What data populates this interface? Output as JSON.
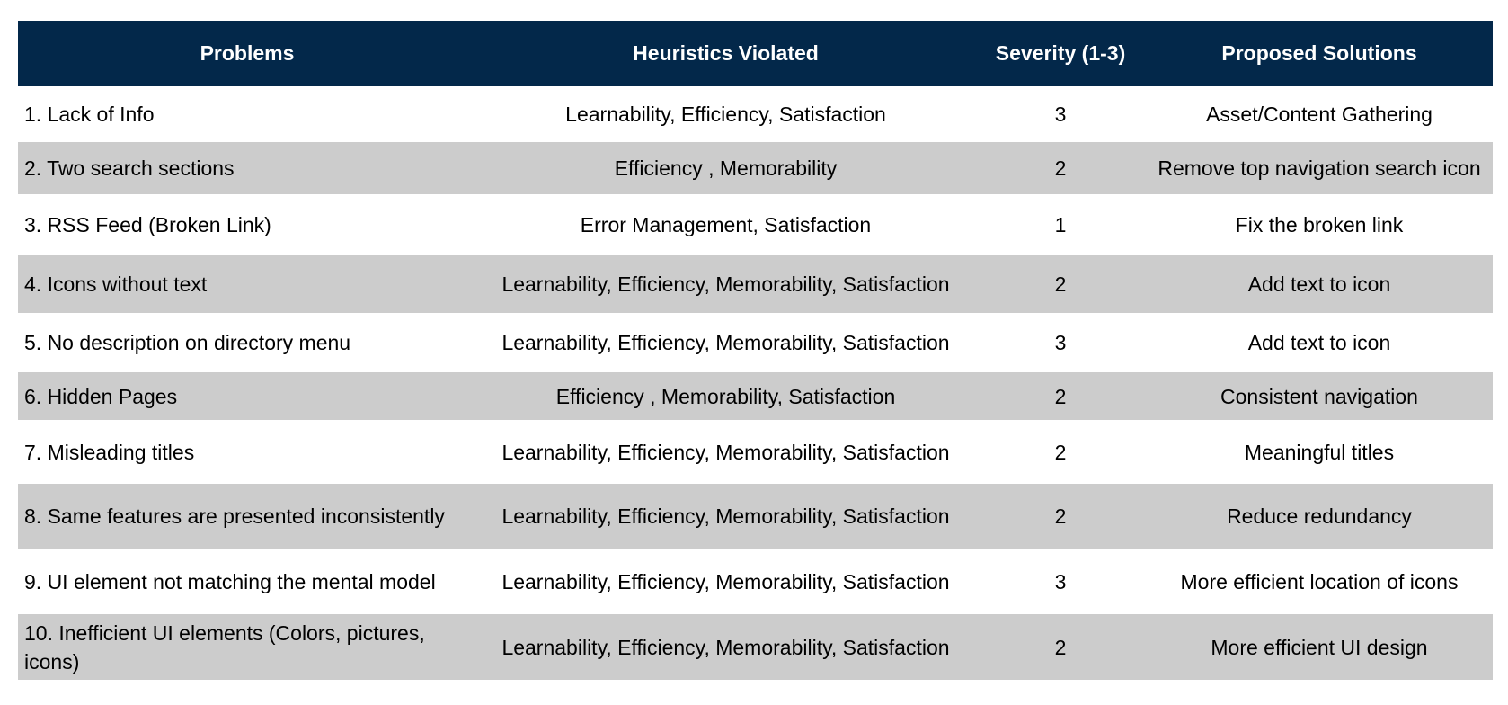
{
  "colors": {
    "header_bg": "#03284a",
    "header_text": "#ffffff",
    "alt_row_bg": "#cccccc",
    "row_bg": "#ffffff"
  },
  "table": {
    "headers": [
      "Problems",
      "Heuristics Violated",
      "Severity (1-3)",
      "Proposed Solutions"
    ],
    "rows": [
      {
        "problem": "1. Lack of Info",
        "heuristics": "Learnability, Efficiency, Satisfaction",
        "severity": "3",
        "solution": "Asset/Content Gathering"
      },
      {
        "problem": "2. Two search sections",
        "heuristics": "Efficiency , Memorability",
        "severity": "2",
        "solution": "Remove top navigation search icon"
      },
      {
        "problem": "3. RSS Feed (Broken Link)",
        "heuristics": "Error Management, Satisfaction",
        "severity": "1",
        "solution": "Fix the broken link"
      },
      {
        "problem": "4. Icons without text",
        "heuristics": "Learnability, Efficiency, Memorability, Satisfaction",
        "severity": "2",
        "solution": "Add text to icon"
      },
      {
        "problem": "5. No description on directory menu",
        "heuristics": "Learnability, Efficiency, Memorability, Satisfaction",
        "severity": "3",
        "solution": "Add text to icon"
      },
      {
        "problem": "6. Hidden Pages",
        "heuristics": "Efficiency , Memorability, Satisfaction",
        "severity": "2",
        "solution": "Consistent navigation"
      },
      {
        "problem": "7. Misleading titles",
        "heuristics": "Learnability, Efficiency, Memorability, Satisfaction",
        "severity": "2",
        "solution": "Meaningful titles"
      },
      {
        "problem": "8. Same features are presented inconsistently",
        "heuristics": "Learnability, Efficiency, Memorability, Satisfaction",
        "severity": "2",
        "solution": "Reduce redundancy"
      },
      {
        "problem": "9. UI element not matching the mental model",
        "heuristics": "Learnability, Efficiency, Memorability, Satisfaction",
        "severity": "3",
        "solution": "More efficient location of icons"
      },
      {
        "problem": "10. Inefficient UI elements (Colors, pictures, icons)",
        "heuristics": "Learnability, Efficiency, Memorability, Satisfaction",
        "severity": "2",
        "solution": "More efficient UI design"
      }
    ]
  }
}
